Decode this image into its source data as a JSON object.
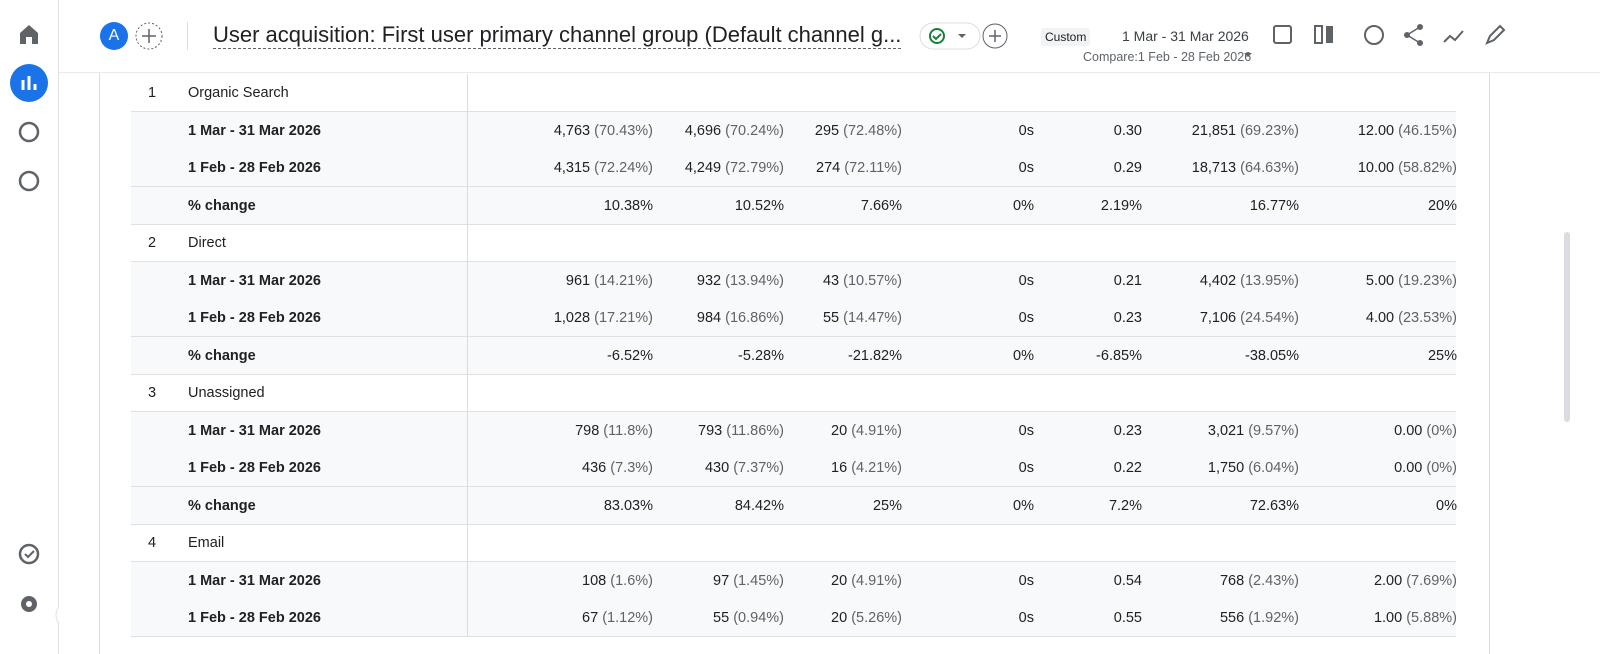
{
  "header": {
    "avatar": "A",
    "title": "User acquisition: First user primary channel group (Default channel g...",
    "date_type": "Custom",
    "date_range": "1 Mar - 31 Mar 2026",
    "compare": "Compare:1 Feb - 28 Feb 2026"
  },
  "table": {
    "groups": [
      {
        "index": "1",
        "name": "Organic Search",
        "rows": [
          {
            "label": "1 Mar - 31 Mar 2026",
            "cells": [
              {
                "value": "4,763",
                "share": "(70.43%)"
              },
              {
                "value": "4,696",
                "share": "(70.24%)"
              },
              {
                "value": "295",
                "share": "(72.48%)"
              },
              {
                "value": "0s"
              },
              {
                "value": "0.30"
              },
              {
                "value": "21,851",
                "share": "(69.23%)"
              },
              {
                "value": "12.00",
                "share": "(46.15%)"
              }
            ]
          },
          {
            "label": "1 Feb - 28 Feb 2026",
            "cells": [
              {
                "value": "4,315",
                "share": "(72.24%)"
              },
              {
                "value": "4,249",
                "share": "(72.79%)"
              },
              {
                "value": "274",
                "share": "(72.11%)"
              },
              {
                "value": "0s"
              },
              {
                "value": "0.29"
              },
              {
                "value": "18,713",
                "share": "(64.63%)"
              },
              {
                "value": "10.00",
                "share": "(58.82%)"
              }
            ]
          },
          {
            "label": "% change",
            "cells": [
              {
                "value": "10.38%"
              },
              {
                "value": "10.52%"
              },
              {
                "value": "7.66%"
              },
              {
                "value": "0%"
              },
              {
                "value": "2.19%"
              },
              {
                "value": "16.77%"
              },
              {
                "value": "20%"
              }
            ]
          }
        ]
      },
      {
        "index": "2",
        "name": "Direct",
        "rows": [
          {
            "label": "1 Mar - 31 Mar 2026",
            "cells": [
              {
                "value": "961",
                "share": "(14.21%)"
              },
              {
                "value": "932",
                "share": "(13.94%)"
              },
              {
                "value": "43",
                "share": "(10.57%)"
              },
              {
                "value": "0s"
              },
              {
                "value": "0.21"
              },
              {
                "value": "4,402",
                "share": "(13.95%)"
              },
              {
                "value": "5.00",
                "share": "(19.23%)"
              }
            ]
          },
          {
            "label": "1 Feb - 28 Feb 2026",
            "cells": [
              {
                "value": "1,028",
                "share": "(17.21%)"
              },
              {
                "value": "984",
                "share": "(16.86%)"
              },
              {
                "value": "55",
                "share": "(14.47%)"
              },
              {
                "value": "0s"
              },
              {
                "value": "0.23"
              },
              {
                "value": "7,106",
                "share": "(24.54%)"
              },
              {
                "value": "4.00",
                "share": "(23.53%)"
              }
            ]
          },
          {
            "label": "% change",
            "cells": [
              {
                "value": "-6.52%"
              },
              {
                "value": "-5.28%"
              },
              {
                "value": "-21.82%"
              },
              {
                "value": "0%"
              },
              {
                "value": "-6.85%"
              },
              {
                "value": "-38.05%"
              },
              {
                "value": "25%"
              }
            ]
          }
        ]
      },
      {
        "index": "3",
        "name": "Unassigned",
        "rows": [
          {
            "label": "1 Mar - 31 Mar 2026",
            "cells": [
              {
                "value": "798",
                "share": "(11.8%)"
              },
              {
                "value": "793",
                "share": "(11.86%)"
              },
              {
                "value": "20",
                "share": "(4.91%)"
              },
              {
                "value": "0s"
              },
              {
                "value": "0.23"
              },
              {
                "value": "3,021",
                "share": "(9.57%)"
              },
              {
                "value": "0.00",
                "share": "(0%)"
              }
            ]
          },
          {
            "label": "1 Feb - 28 Feb 2026",
            "cells": [
              {
                "value": "436",
                "share": "(7.3%)"
              },
              {
                "value": "430",
                "share": "(7.37%)"
              },
              {
                "value": "16",
                "share": "(4.21%)"
              },
              {
                "value": "0s"
              },
              {
                "value": "0.22"
              },
              {
                "value": "1,750",
                "share": "(6.04%)"
              },
              {
                "value": "0.00",
                "share": "(0%)"
              }
            ]
          },
          {
            "label": "% change",
            "cells": [
              {
                "value": "83.03%"
              },
              {
                "value": "84.42%"
              },
              {
                "value": "25%"
              },
              {
                "value": "0%"
              },
              {
                "value": "7.2%"
              },
              {
                "value": "72.63%"
              },
              {
                "value": "0%"
              }
            ]
          }
        ]
      },
      {
        "index": "4",
        "name": "Email",
        "rows": [
          {
            "label": "1 Mar - 31 Mar 2026",
            "cells": [
              {
                "value": "108",
                "share": "(1.6%)"
              },
              {
                "value": "97",
                "share": "(1.45%)"
              },
              {
                "value": "20",
                "share": "(4.91%)"
              },
              {
                "value": "0s"
              },
              {
                "value": "0.54"
              },
              {
                "value": "768",
                "share": "(2.43%)"
              },
              {
                "value": "2.00",
                "share": "(7.69%)"
              }
            ]
          },
          {
            "label": "1 Feb - 28 Feb 2026",
            "cells": [
              {
                "value": "67",
                "share": "(1.12%)"
              },
              {
                "value": "55",
                "share": "(0.94%)"
              },
              {
                "value": "20",
                "share": "(5.26%)"
              },
              {
                "value": "0s"
              },
              {
                "value": "0.55"
              },
              {
                "value": "556",
                "share": "(1.92%)"
              },
              {
                "value": "1.00",
                "share": "(5.88%)"
              }
            ]
          }
        ]
      }
    ]
  }
}
